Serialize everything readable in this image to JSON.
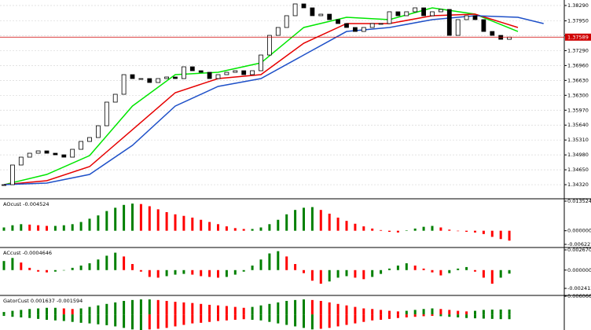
{
  "chart_data": [
    {
      "type": "candlestick",
      "closes": [
        1.3432,
        1.34756,
        1.3493,
        1.35017,
        1.35069,
        1.35017,
        1.34982,
        1.3493,
        1.35104,
        1.35278,
        1.35365,
        1.35626,
        1.36149,
        1.36323,
        1.36758,
        1.36671,
        1.36671,
        1.36584,
        1.36671,
        1.36706,
        1.36671,
        1.36932,
        1.36845,
        1.3681,
        1.36671,
        1.36758,
        1.3681,
        1.36845,
        1.36758,
        1.36845,
        1.37193,
        1.37628,
        1.37803,
        1.38064,
        1.38325,
        1.38238,
        1.38064,
        1.38098,
        1.37977,
        1.3789,
        1.37803,
        1.37715,
        1.37803,
        1.3789,
        1.3789,
        1.38151,
        1.38064,
        1.38151,
        1.38238,
        1.38064,
        1.38151,
        1.38203,
        1.37628,
        1.37977,
        1.38064,
        1.37977,
        1.37715,
        1.37628,
        1.37541,
        1.37589
      ],
      "color_up": "#ffffff",
      "color_down": "#000000",
      "lines": [
        {
          "color": "#00e600",
          "x": [
            0,
            5,
            10,
            15,
            20,
            25,
            30,
            35,
            40,
            45,
            50,
            55,
            60
          ],
          "values": [
            1.3432,
            1.34547,
            1.34965,
            1.36062,
            1.36758,
            1.3681,
            1.37019,
            1.37803,
            1.38029,
            1.37977,
            1.38238,
            1.38098,
            1.37715
          ]
        },
        {
          "color": "#e60000",
          "x": [
            0,
            5,
            10,
            15,
            20,
            25,
            30,
            35,
            40,
            45,
            50,
            55,
            60
          ],
          "values": [
            1.3432,
            1.34408,
            1.34721,
            1.35539,
            1.36358,
            1.36671,
            1.36758,
            1.37454,
            1.3789,
            1.3789,
            1.38064,
            1.38098,
            1.37803
          ]
        },
        {
          "color": "#1e50c8",
          "x": [
            0,
            5,
            10,
            15,
            20,
            25,
            30,
            35,
            40,
            45,
            50,
            55,
            60,
            63
          ],
          "values": [
            1.3432,
            1.34355,
            1.34547,
            1.35191,
            1.36062,
            1.36497,
            1.36671,
            1.37193,
            1.37715,
            1.37803,
            1.37977,
            1.38064,
            1.38029,
            1.3789
          ]
        }
      ],
      "current_price": 1.37589,
      "current_price_color": "#d00000",
      "ylim": [
        1.34025,
        1.38412
      ],
      "yticks": [
        {
          "value": 1.3829,
          "label": "1.38290"
        },
        {
          "value": 1.3795,
          "label": "1.37950"
        },
        {
          "value": 1.3762,
          "label": "1.37620"
        },
        {
          "value": 1.3729,
          "label": "1.37290"
        },
        {
          "value": 1.3696,
          "label": "1.36960"
        },
        {
          "value": 1.3663,
          "label": "1.36630"
        },
        {
          "value": 1.363,
          "label": "1.36300"
        },
        {
          "value": 1.3597,
          "label": "1.35970"
        },
        {
          "value": 1.3564,
          "label": "1.35640"
        },
        {
          "value": 1.3531,
          "label": "1.35310"
        },
        {
          "value": 1.3498,
          "label": "1.34980"
        },
        {
          "value": 1.3465,
          "label": "1.34650"
        },
        {
          "value": 1.3432,
          "label": "1.34320"
        }
      ],
      "grid": true
    },
    {
      "type": "histogram",
      "label": "AOcust -0.004524",
      "values": [
        0.0015,
        0.0025,
        0.003,
        0.0028,
        0.0025,
        0.0022,
        0.0022,
        0.0025,
        0.003,
        0.004,
        0.0055,
        0.007,
        0.009,
        0.0105,
        0.0118,
        0.0124,
        0.0122,
        0.0112,
        0.0098,
        0.0085,
        0.0075,
        0.0068,
        0.006,
        0.005,
        0.004,
        0.003,
        0.002,
        0.0012,
        0.0008,
        0.0008,
        0.0015,
        0.003,
        0.005,
        0.0075,
        0.0095,
        0.0105,
        0.0108,
        0.0095,
        0.0078,
        0.006,
        0.0045,
        0.0032,
        0.002,
        0.001,
        0.0003,
        -0.0005,
        -0.0008,
        0.0002,
        0.001,
        0.0018,
        0.0022,
        0.0015,
        0.0005,
        -0.0002,
        -0.0005,
        -0.0008,
        -0.0015,
        -0.0028,
        -0.0038,
        -0.004524
      ],
      "color_up": "#008000",
      "color_down": "#ff0000",
      "ylim": [
        -0.0073,
        0.01424
      ],
      "yticks": [
        0.013524,
        {
          "value": 0,
          "label": "0.000000"
        },
        -0.006227
      ]
    },
    {
      "type": "histogram",
      "label": "ACcust -0.0004646",
      "values": [
        0.0012,
        0.0016,
        0.001,
        0.0003,
        -0.0002,
        -0.0003,
        -0.0002,
        0,
        0.0003,
        0.0006,
        0.0009,
        0.0014,
        0.0019,
        0.0023,
        0.0018,
        0.0008,
        -0.0002,
        -0.0009,
        -0.001,
        -0.0008,
        -0.0006,
        -0.0005,
        -0.0006,
        -0.0008,
        -0.0009,
        -0.001,
        -0.0009,
        -0.0006,
        -0.0002,
        0.0006,
        0.0014,
        0.0022,
        0.0025,
        0.0018,
        0.0008,
        -0.0004,
        -0.0014,
        -0.0018,
        -0.0015,
        -0.001,
        -0.0008,
        -0.001,
        -0.0012,
        -0.0009,
        -0.0005,
        0.0002,
        0.0006,
        0.0009,
        0.0006,
        0.0002,
        -0.0003,
        -0.0007,
        -0.0004,
        0.0002,
        0.0004,
        -0.0002,
        -0.001,
        -0.0018,
        -0.001,
        -0.0004646
      ],
      "color_up": "#008000",
      "color_down": "#ff0000",
      "ylim": [
        -0.00324,
        0.00288
      ],
      "yticks": [
        0.0026701,
        {
          "value": 0,
          "label": "0.0000000"
        },
        -0.0024127
      ]
    },
    {
      "type": "gator",
      "label": "GatorCust 0.001637 -0.001594",
      "upper": [
        0.0008,
        0.0012,
        0.0015,
        0.0018,
        0.002,
        0.0022,
        0.0022,
        0.002,
        0.0018,
        0.002,
        0.0025,
        0.003,
        0.0035,
        0.004,
        0.0045,
        0.0048,
        0.005,
        0.005,
        0.0048,
        0.0045,
        0.0042,
        0.004,
        0.0038,
        0.0035,
        0.0032,
        0.003,
        0.0028,
        0.0025,
        0.0022,
        0.0025,
        0.003,
        0.0035,
        0.004,
        0.0045,
        0.0048,
        0.005,
        0.0048,
        0.0045,
        0.004,
        0.0035,
        0.003,
        0.0025,
        0.002,
        0.0018,
        0.0015,
        0.0012,
        0.001,
        0.0012,
        0.0015,
        0.0018,
        0.002,
        0.0018,
        0.0015,
        0.0012,
        0.001,
        0.0012,
        0.0015,
        0.0016,
        0.00163,
        0.001637
      ],
      "lower": [
        -0.0005,
        -0.0008,
        -0.001,
        -0.0012,
        -0.0015,
        -0.0018,
        -0.002,
        -0.0022,
        -0.0025,
        -0.0028,
        -0.003,
        -0.0033,
        -0.0036,
        -0.004,
        -0.0045,
        -0.005,
        -0.0052,
        -0.005,
        -0.0048,
        -0.0045,
        -0.004,
        -0.0035,
        -0.003,
        -0.0028,
        -0.0025,
        -0.0022,
        -0.002,
        -0.0018,
        -0.0016,
        -0.0018,
        -0.002,
        -0.0025,
        -0.003,
        -0.0035,
        -0.004,
        -0.0045,
        -0.005,
        -0.0048,
        -0.0045,
        -0.004,
        -0.0035,
        -0.003,
        -0.0025,
        -0.002,
        -0.0018,
        -0.0015,
        -0.0012,
        -0.001,
        -0.0008,
        -0.0006,
        -0.0005,
        -0.0006,
        -0.0008,
        -0.001,
        -0.0012,
        -0.0013,
        -0.0014,
        -0.0015,
        -0.00158,
        -0.001594
      ],
      "color_up": "#008000",
      "color_down": "#ff0000",
      "ylim": [
        -0.0052,
        0.006066
      ],
      "yticks": [
        0.006066
      ]
    }
  ]
}
